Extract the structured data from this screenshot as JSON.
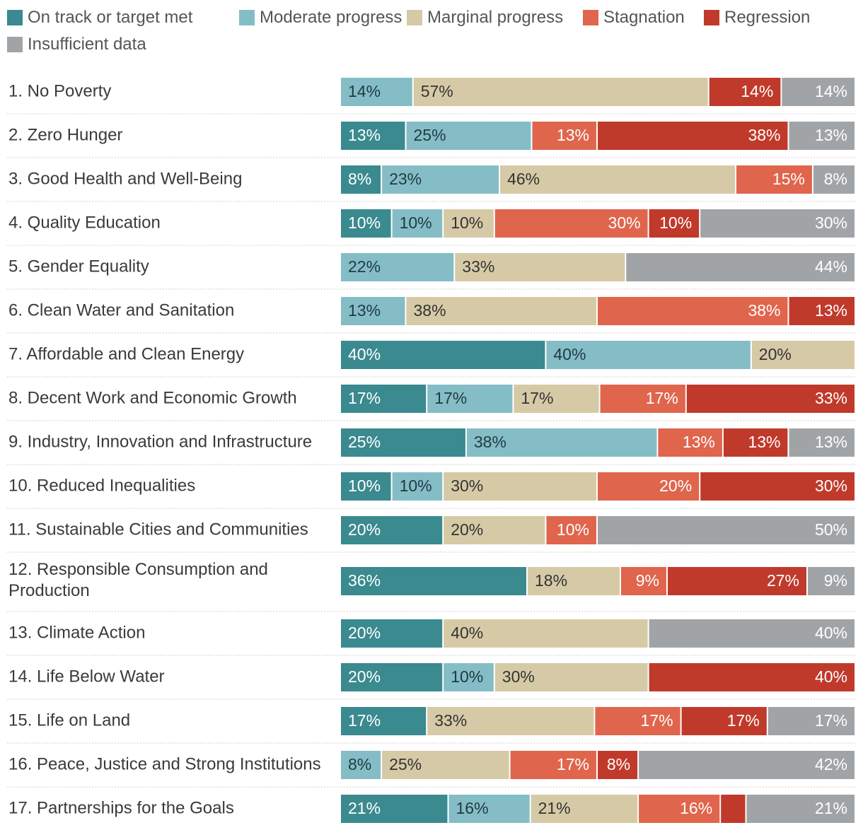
{
  "chart_data": {
    "type": "bar",
    "orientation": "horizontal",
    "stacked": true,
    "title": "",
    "xlabel": "",
    "ylabel": "",
    "xlim": [
      0,
      100
    ],
    "legend_position": "top",
    "grid": false,
    "legend": [
      {
        "key": "on_track",
        "label": "On track or target met",
        "color": "#3a8a8f"
      },
      {
        "key": "moderate",
        "label": "Moderate progress",
        "color": "#85bdc7"
      },
      {
        "key": "marginal",
        "label": "Marginal progress",
        "color": "#d6caa6"
      },
      {
        "key": "stagnation",
        "label": "Stagnation",
        "color": "#e0654d"
      },
      {
        "key": "regression",
        "label": "Regression",
        "color": "#c03a2b"
      },
      {
        "key": "insufficient",
        "label": "Insufficient data",
        "color": "#a1a4a7"
      }
    ],
    "categories": [
      {
        "label": "1. No Poverty",
        "segments": [
          {
            "series": "moderate",
            "value": 14,
            "label": "14%"
          },
          {
            "series": "marginal",
            "value": 57,
            "label": "57%"
          },
          {
            "series": "regression",
            "value": 14,
            "label": "14%"
          },
          {
            "series": "insufficient",
            "value": 14,
            "label": "14%"
          }
        ]
      },
      {
        "label": "2. Zero Hunger",
        "segments": [
          {
            "series": "on_track",
            "value": 13,
            "label": "13%"
          },
          {
            "series": "moderate",
            "value": 25,
            "label": "25%"
          },
          {
            "series": "stagnation",
            "value": 13,
            "label": "13%"
          },
          {
            "series": "regression",
            "value": 38,
            "label": "38%"
          },
          {
            "series": "insufficient",
            "value": 13,
            "label": "13%"
          }
        ]
      },
      {
        "label": "3. Good Health and Well-Being",
        "segments": [
          {
            "series": "on_track",
            "value": 8,
            "label": "8%"
          },
          {
            "series": "moderate",
            "value": 23,
            "label": "23%"
          },
          {
            "series": "marginal",
            "value": 46,
            "label": "46%"
          },
          {
            "series": "stagnation",
            "value": 15,
            "label": "15%"
          },
          {
            "series": "insufficient",
            "value": 8,
            "label": "8%"
          }
        ]
      },
      {
        "label": "4. Quality Education",
        "segments": [
          {
            "series": "on_track",
            "value": 10,
            "label": "10%"
          },
          {
            "series": "moderate",
            "value": 10,
            "label": "10%"
          },
          {
            "series": "marginal",
            "value": 10,
            "label": "10%"
          },
          {
            "series": "stagnation",
            "value": 30,
            "label": "30%"
          },
          {
            "series": "regression",
            "value": 10,
            "label": "10%"
          },
          {
            "series": "insufficient",
            "value": 30,
            "label": "30%"
          }
        ]
      },
      {
        "label": "5. Gender Equality",
        "segments": [
          {
            "series": "moderate",
            "value": 22,
            "label": "22%"
          },
          {
            "series": "marginal",
            "value": 33,
            "label": "33%"
          },
          {
            "series": "insufficient",
            "value": 44,
            "label": "44%"
          }
        ]
      },
      {
        "label": "6. Clean Water and Sanitation",
        "segments": [
          {
            "series": "moderate",
            "value": 13,
            "label": "13%"
          },
          {
            "series": "marginal",
            "value": 38,
            "label": "38%"
          },
          {
            "series": "stagnation",
            "value": 38,
            "label": "38%"
          },
          {
            "series": "regression",
            "value": 13,
            "label": "13%"
          }
        ]
      },
      {
        "label": "7. Affordable and Clean Energy",
        "segments": [
          {
            "series": "on_track",
            "value": 40,
            "label": "40%"
          },
          {
            "series": "moderate",
            "value": 40,
            "label": "40%"
          },
          {
            "series": "marginal",
            "value": 20,
            "label": "20%"
          }
        ]
      },
      {
        "label": "8. Decent Work and Economic Growth",
        "segments": [
          {
            "series": "on_track",
            "value": 17,
            "label": "17%"
          },
          {
            "series": "moderate",
            "value": 17,
            "label": "17%"
          },
          {
            "series": "marginal",
            "value": 17,
            "label": "17%"
          },
          {
            "series": "stagnation",
            "value": 17,
            "label": "17%"
          },
          {
            "series": "regression",
            "value": 33,
            "label": "33%"
          }
        ]
      },
      {
        "label": "9. Industry, Innovation and Infrastructure",
        "segments": [
          {
            "series": "on_track",
            "value": 25,
            "label": "25%"
          },
          {
            "series": "moderate",
            "value": 38,
            "label": "38%"
          },
          {
            "series": "stagnation",
            "value": 13,
            "label": "13%"
          },
          {
            "series": "regression",
            "value": 13,
            "label": "13%"
          },
          {
            "series": "insufficient",
            "value": 13,
            "label": "13%"
          }
        ]
      },
      {
        "label": "10. Reduced Inequalities",
        "segments": [
          {
            "series": "on_track",
            "value": 10,
            "label": "10%"
          },
          {
            "series": "moderate",
            "value": 10,
            "label": "10%"
          },
          {
            "series": "marginal",
            "value": 30,
            "label": "30%"
          },
          {
            "series": "stagnation",
            "value": 20,
            "label": "20%"
          },
          {
            "series": "regression",
            "value": 30,
            "label": "30%"
          }
        ]
      },
      {
        "label": "11. Sustainable Cities and Communities",
        "segments": [
          {
            "series": "on_track",
            "value": 20,
            "label": "20%"
          },
          {
            "series": "marginal",
            "value": 20,
            "label": "20%"
          },
          {
            "series": "stagnation",
            "value": 10,
            "label": "10%"
          },
          {
            "series": "insufficient",
            "value": 50,
            "label": "50%"
          }
        ]
      },
      {
        "label": "12. Responsible Consumption and Production",
        "label_lines": [
          "12. Responsible Consumption and",
          "Production"
        ],
        "segments": [
          {
            "series": "on_track",
            "value": 36,
            "label": "36%"
          },
          {
            "series": "marginal",
            "value": 18,
            "label": "18%"
          },
          {
            "series": "stagnation",
            "value": 9,
            "label": "9%"
          },
          {
            "series": "regression",
            "value": 27,
            "label": "27%"
          },
          {
            "series": "insufficient",
            "value": 9,
            "label": "9%"
          }
        ]
      },
      {
        "label": "13. Climate Action",
        "segments": [
          {
            "series": "on_track",
            "value": 20,
            "label": "20%"
          },
          {
            "series": "marginal",
            "value": 40,
            "label": "40%"
          },
          {
            "series": "insufficient",
            "value": 40,
            "label": "40%"
          }
        ]
      },
      {
        "label": "14. Life Below Water",
        "segments": [
          {
            "series": "on_track",
            "value": 20,
            "label": "20%"
          },
          {
            "series": "moderate",
            "value": 10,
            "label": "10%"
          },
          {
            "series": "marginal",
            "value": 30,
            "label": "30%"
          },
          {
            "series": "regression",
            "value": 40,
            "label": "40%"
          }
        ]
      },
      {
        "label": "15. Life on Land",
        "segments": [
          {
            "series": "on_track",
            "value": 17,
            "label": "17%"
          },
          {
            "series": "marginal",
            "value": 33,
            "label": "33%"
          },
          {
            "series": "stagnation",
            "value": 17,
            "label": "17%"
          },
          {
            "series": "regression",
            "value": 17,
            "label": "17%"
          },
          {
            "series": "insufficient",
            "value": 17,
            "label": "17%"
          }
        ]
      },
      {
        "label": "16. Peace, Justice and Strong Institutions",
        "segments": [
          {
            "series": "moderate",
            "value": 8,
            "label": "8%"
          },
          {
            "series": "marginal",
            "value": 25,
            "label": "25%"
          },
          {
            "series": "stagnation",
            "value": 17,
            "label": "17%"
          },
          {
            "series": "regression",
            "value": 8,
            "label": "8%"
          },
          {
            "series": "insufficient",
            "value": 42,
            "label": "42%"
          }
        ]
      },
      {
        "label": "17. Partnerships for the Goals",
        "segments": [
          {
            "series": "on_track",
            "value": 21,
            "label": "21%"
          },
          {
            "series": "moderate",
            "value": 16,
            "label": "16%"
          },
          {
            "series": "marginal",
            "value": 21,
            "label": "21%"
          },
          {
            "series": "stagnation",
            "value": 16,
            "label": "16%"
          },
          {
            "series": "regression",
            "value": 5,
            "label": ""
          },
          {
            "series": "insufficient",
            "value": 21,
            "label": "21%"
          }
        ]
      }
    ]
  }
}
